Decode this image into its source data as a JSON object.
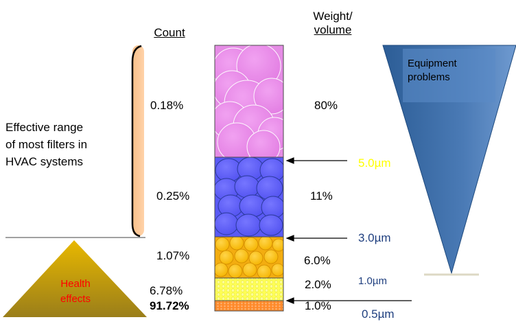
{
  "headers": {
    "count": "Count",
    "weight_line1": "Weight/",
    "weight_line2": "volume"
  },
  "effective_range": {
    "line1": "Effective range",
    "line2": "of most filters in",
    "line3": "HVAC systems"
  },
  "health_effects": {
    "line1": "Health",
    "line2": "effects",
    "color": "#ff0000"
  },
  "equipment_problems": {
    "line1": "Equipment",
    "line2": "problems"
  },
  "rows": [
    {
      "count": "0.18%",
      "weight": "80%",
      "color": "#ee88ee"
    },
    {
      "count": "0.25%",
      "weight": "11%",
      "color": "#6666ff"
    },
    {
      "count": "1.07%",
      "weight": "6.0%",
      "color": "#ffc000"
    },
    {
      "count": "6.78%",
      "weight": "2.0%",
      "color": "#ffff66"
    },
    {
      "count": "91.72%",
      "weight": "1.0%",
      "color": "#ff8833"
    }
  ],
  "size_labels": {
    "s5": {
      "text": "5.0µm",
      "color": "#ffff00"
    },
    "s3": {
      "text": "3.0µm",
      "color": "#1f3f7f"
    },
    "s1": {
      "text": "1.0µm",
      "color": "#1f3f7f"
    },
    "s05": {
      "text": "0.5µm",
      "color": "#1f3f7f"
    }
  }
}
